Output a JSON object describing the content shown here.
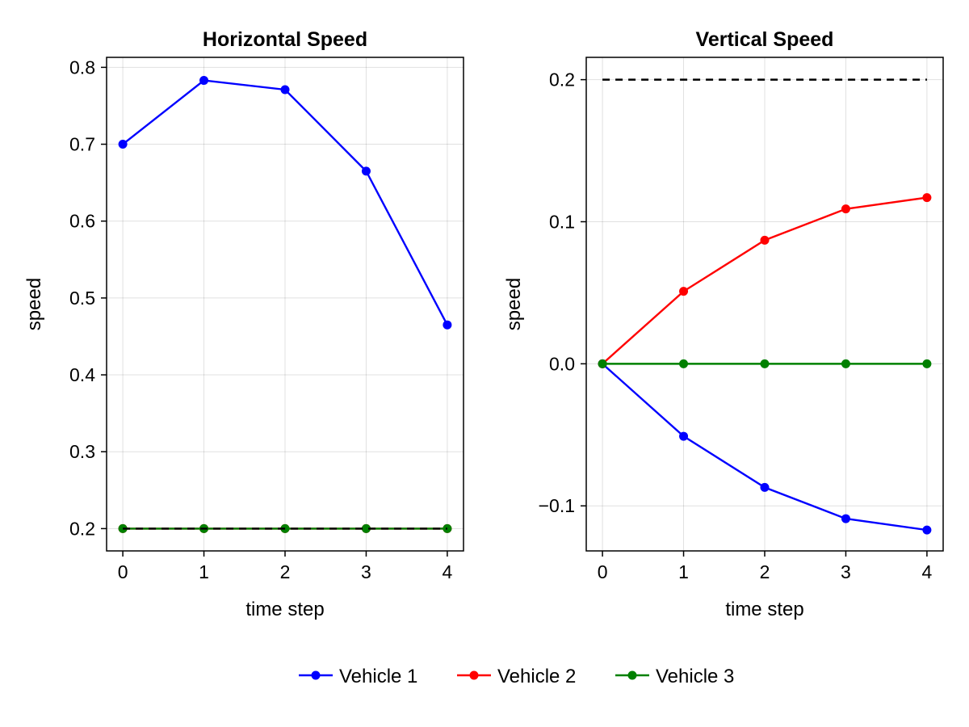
{
  "chart_data": [
    {
      "type": "line",
      "title": "Horizontal Speed",
      "xlabel": "time step",
      "ylabel": "speed",
      "x": [
        0,
        1,
        2,
        3,
        4
      ],
      "xticks": [
        "0",
        "1",
        "2",
        "3",
        "4"
      ],
      "xlim": [
        -0.2,
        4.2
      ],
      "yticks": [
        "0.2",
        "0.3",
        "0.4",
        "0.5",
        "0.6",
        "0.7",
        "0.8"
      ],
      "ylim": [
        0.171,
        0.813
      ],
      "grid": true,
      "series": [
        {
          "name": "Vehicle 1",
          "color": "#0000ff",
          "values": [
            0.7,
            0.783,
            0.771,
            0.665,
            0.465
          ]
        },
        {
          "name": "Vehicle 2",
          "color": "#ff0000",
          "values": [
            0.2,
            0.2,
            0.2,
            0.2,
            0.2
          ]
        },
        {
          "name": "Vehicle 3",
          "color": "#008000",
          "values": [
            0.2,
            0.2,
            0.2,
            0.2,
            0.2
          ]
        }
      ],
      "reference_line": {
        "value": 0.2,
        "color": "#000000",
        "style": "dashed"
      }
    },
    {
      "type": "line",
      "title": "Vertical Speed",
      "xlabel": "time step",
      "ylabel": "speed",
      "x": [
        0,
        1,
        2,
        3,
        4
      ],
      "xticks": [
        "0",
        "1",
        "2",
        "3",
        "4"
      ],
      "xlim": [
        -0.2,
        4.2
      ],
      "yticks": [
        "−0.1",
        "0.0",
        "0.1",
        "0.2"
      ],
      "yticks_values": [
        -0.1,
        0.0,
        0.1,
        0.2
      ],
      "ylim": [
        -0.1317,
        0.2157
      ],
      "grid": true,
      "series": [
        {
          "name": "Vehicle 1",
          "color": "#0000ff",
          "values": [
            0.0,
            -0.051,
            -0.087,
            -0.109,
            -0.117
          ]
        },
        {
          "name": "Vehicle 2",
          "color": "#ff0000",
          "values": [
            0.0,
            0.051,
            0.087,
            0.109,
            0.117
          ]
        },
        {
          "name": "Vehicle 3",
          "color": "#008000",
          "values": [
            0.0,
            0.0,
            0.0,
            0.0,
            0.0
          ]
        }
      ],
      "reference_line": {
        "value": 0.2,
        "color": "#000000",
        "style": "dashed"
      }
    }
  ],
  "legend": {
    "placement": "bottom",
    "entries": [
      {
        "label": "Vehicle 1",
        "color": "#0000ff"
      },
      {
        "label": "Vehicle 2",
        "color": "#ff0000"
      },
      {
        "label": "Vehicle 3",
        "color": "#008000"
      }
    ]
  }
}
